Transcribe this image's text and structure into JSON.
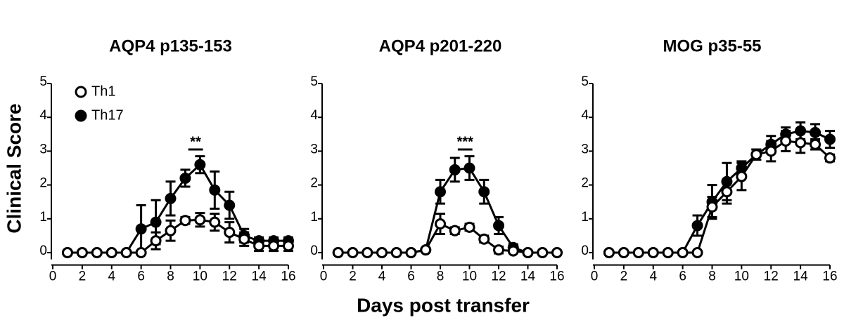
{
  "ylabel": "Clinical Score",
  "xlabel": "Days post transfer",
  "chart_data": [
    {
      "type": "line",
      "title": "AQP4 p135-153",
      "annotation": "**",
      "legend": "upper left",
      "x": [
        1,
        2,
        3,
        4,
        5,
        6,
        7,
        8,
        9,
        10,
        11,
        12,
        13,
        14,
        15,
        16
      ],
      "xlim": [
        0,
        16
      ],
      "xticks": [
        0,
        2,
        4,
        6,
        8,
        10,
        12,
        14,
        16
      ],
      "ylim": [
        -0.2,
        5
      ],
      "yticks": [
        0,
        1,
        2,
        3,
        4,
        5
      ],
      "series": [
        {
          "name": "Th1",
          "color": "#000000",
          "fill": "#ffffff",
          "values": [
            0,
            0,
            0,
            0,
            0,
            0,
            0.35,
            0.65,
            0.95,
            0.97,
            0.9,
            0.6,
            0.4,
            0.2,
            0.2,
            0.2
          ],
          "errors": [
            0,
            0,
            0,
            0,
            0,
            0,
            0.25,
            0.3,
            0.1,
            0.2,
            0.25,
            0.3,
            0.2,
            0.15,
            0.15,
            0.15
          ]
        },
        {
          "name": "Th17",
          "color": "#000000",
          "fill": "#000000",
          "values": [
            0,
            0,
            0,
            0,
            0,
            0.7,
            0.9,
            1.6,
            2.2,
            2.6,
            1.85,
            1.4,
            0.5,
            0.35,
            0.35,
            0.35
          ],
          "errors": [
            0,
            0,
            0,
            0,
            0,
            0.7,
            0.65,
            0.5,
            0.25,
            0.25,
            0.55,
            0.4,
            0.2,
            0.1,
            0.1,
            0.1
          ]
        }
      ]
    },
    {
      "type": "line",
      "title": "AQP4 p201-220",
      "annotation": "***",
      "x": [
        1,
        2,
        3,
        4,
        5,
        6,
        7,
        8,
        9,
        10,
        11,
        12,
        13,
        14,
        15,
        16
      ],
      "xlim": [
        0,
        16
      ],
      "xticks": [
        0,
        2,
        4,
        6,
        8,
        10,
        12,
        14,
        16
      ],
      "ylim": [
        -0.2,
        5
      ],
      "yticks": [
        0,
        1,
        2,
        3,
        4,
        5
      ],
      "series": [
        {
          "color": "#000000",
          "fill": "#ffffff",
          "values": [
            0,
            0,
            0,
            0,
            0,
            0,
            0.08,
            0.85,
            0.65,
            0.75,
            0.4,
            0.08,
            0.05,
            0,
            0,
            0
          ],
          "errors": [
            0,
            0,
            0,
            0,
            0,
            0,
            0,
            0.3,
            0.1,
            0.1,
            0.1,
            0.1,
            0,
            0,
            0,
            0
          ]
        },
        {
          "color": "#000000",
          "fill": "#000000",
          "values": [
            0,
            0,
            0,
            0,
            0,
            0,
            0.08,
            1.8,
            2.45,
            2.5,
            1.8,
            0.8,
            0.15,
            0,
            0,
            0
          ],
          "errors": [
            0,
            0,
            0,
            0,
            0,
            0,
            0,
            0.35,
            0.35,
            0.35,
            0.35,
            0.25,
            0.1,
            0,
            0,
            0
          ]
        }
      ]
    },
    {
      "type": "line",
      "title": "MOG p35-55",
      "x": [
        1,
        2,
        3,
        4,
        5,
        6,
        7,
        8,
        9,
        10,
        11,
        12,
        13,
        14,
        15,
        16
      ],
      "xlim": [
        0,
        16
      ],
      "xticks": [
        0,
        2,
        4,
        6,
        8,
        10,
        12,
        14,
        16
      ],
      "ylim": [
        -0.2,
        5
      ],
      "yticks": [
        0,
        1,
        2,
        3,
        4,
        5
      ],
      "series": [
        {
          "color": "#000000",
          "fill": "#ffffff",
          "values": [
            0,
            0,
            0,
            0,
            0,
            0,
            0,
            1.35,
            1.8,
            2.25,
            2.9,
            3.0,
            3.3,
            3.25,
            3.2,
            2.8
          ],
          "errors": [
            0,
            0,
            0,
            0,
            0,
            0,
            0,
            0.3,
            0.35,
            0.4,
            0.15,
            0.3,
            0.3,
            0.3,
            0.15,
            0.1
          ]
        },
        {
          "color": "#000000",
          "fill": "#000000",
          "values": [
            0,
            0,
            0,
            0,
            0,
            0,
            0.8,
            1.5,
            2.1,
            2.5,
            2.9,
            3.2,
            3.5,
            3.6,
            3.55,
            3.35
          ],
          "errors": [
            0,
            0,
            0,
            0,
            0,
            0,
            0.3,
            0.5,
            0.55,
            0.2,
            0.15,
            0.25,
            0.2,
            0.25,
            0.25,
            0.25
          ]
        }
      ]
    }
  ]
}
